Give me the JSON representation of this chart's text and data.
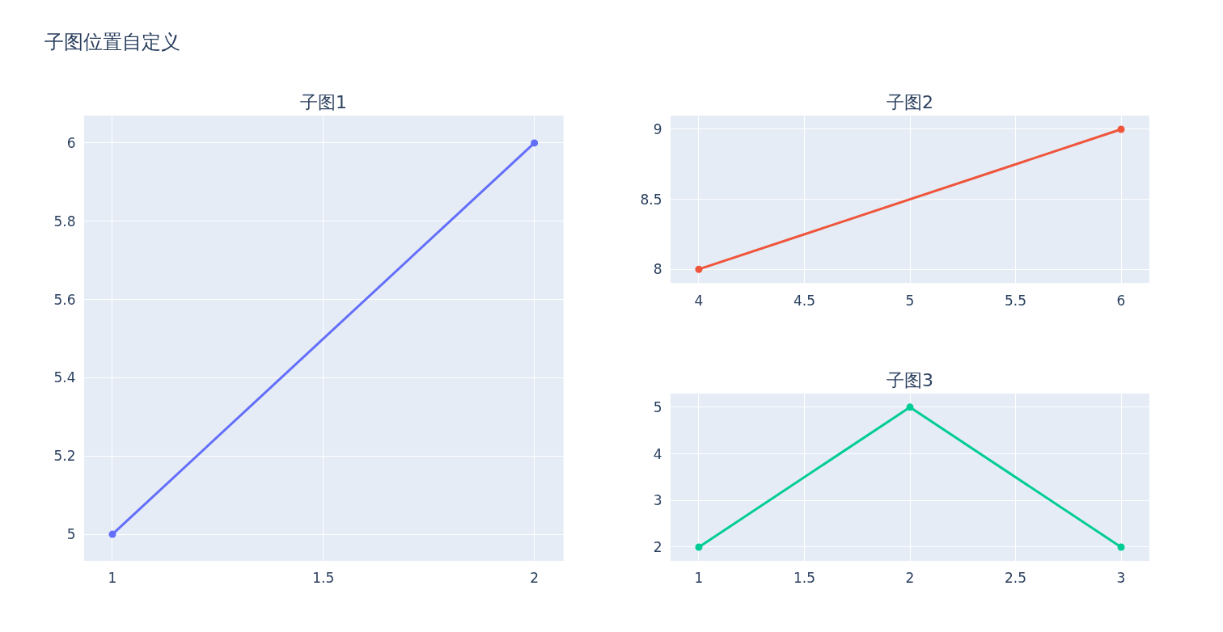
{
  "chart_data": [
    {
      "type": "line",
      "title": "子图位置自定义",
      "subtitle": "子图1",
      "x": [
        1,
        2
      ],
      "series": [
        {
          "color": "#636efa",
          "values": [
            5,
            6
          ]
        }
      ],
      "xlim": [
        0.933,
        2.069
      ],
      "ylim": [
        4.932,
        6.07
      ],
      "xticks": [
        1,
        1.5,
        2
      ],
      "yticks": [
        5,
        5.2,
        5.4,
        5.6,
        5.8,
        6
      ],
      "grid": true,
      "marker": "circle"
    },
    {
      "type": "line",
      "subtitle": "子图2",
      "x": [
        4,
        6
      ],
      "series": [
        {
          "color": "#ef553b",
          "values": [
            8,
            9
          ]
        }
      ],
      "xlim": [
        3.866,
        6.134
      ],
      "ylim": [
        7.902,
        9.098
      ],
      "xticks": [
        4,
        4.5,
        5,
        5.5,
        6
      ],
      "yticks": [
        8,
        8.5,
        9
      ],
      "grid": true,
      "marker": "circle"
    },
    {
      "type": "line",
      "subtitle": "子图3",
      "x": [
        1,
        2,
        3
      ],
      "series": [
        {
          "color": "#00cc96",
          "values": [
            2,
            5,
            2
          ]
        }
      ],
      "xlim": [
        0.866,
        3.134
      ],
      "ylim": [
        1.705,
        5.295
      ],
      "xticks": [
        1,
        1.5,
        2,
        2.5,
        3
      ],
      "yticks": [
        2,
        3,
        4,
        5
      ],
      "grid": true,
      "marker": "circle"
    }
  ]
}
